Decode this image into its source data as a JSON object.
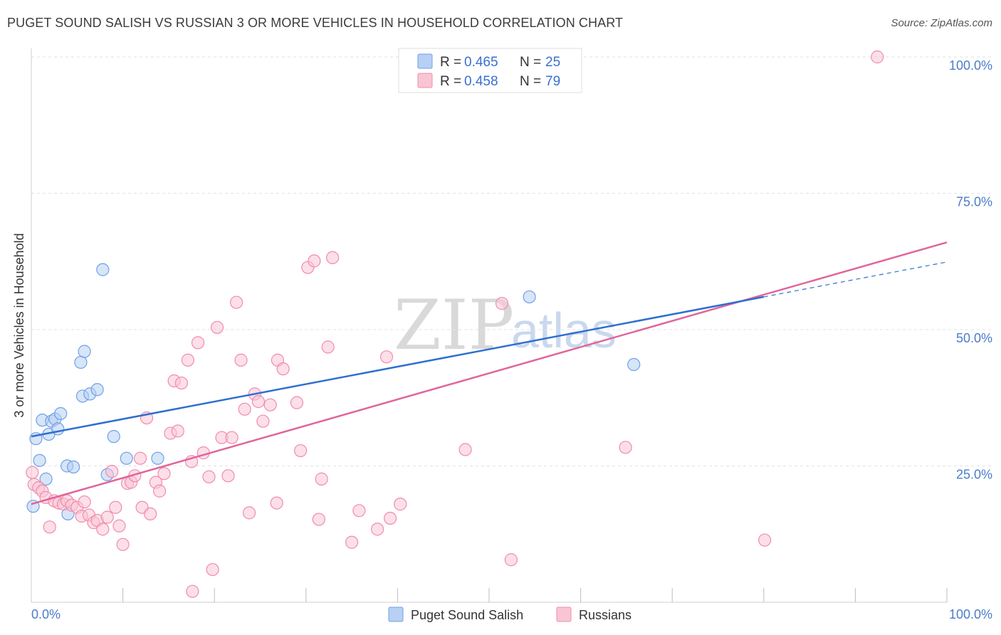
{
  "title": "PUGET SOUND SALISH VS RUSSIAN 3 OR MORE VEHICLES IN HOUSEHOLD CORRELATION CHART",
  "source": "Source: ZipAtlas.com",
  "watermark": {
    "zip": "ZIP",
    "atlas": "atlas"
  },
  "chart_data": {
    "type": "scatter",
    "xlabel": "",
    "ylabel": "3 or more Vehicles in Household",
    "xlim": [
      0,
      100
    ],
    "ylim": [
      0,
      100
    ],
    "x_tick_labels": {
      "left": "0.0%",
      "right": "100.0%"
    },
    "y_ticks": [
      {
        "value": 25,
        "label": "25.0%"
      },
      {
        "value": 50,
        "label": "50.0%"
      },
      {
        "value": 75,
        "label": "75.0%"
      },
      {
        "value": 100,
        "label": "100.0%"
      }
    ],
    "legend_stats": [
      {
        "r_label": "R = ",
        "r": "0.465",
        "n_label": "N = ",
        "n": "25"
      },
      {
        "r_label": "R = ",
        "r": "0.458",
        "n_label": "N = ",
        "n": "79"
      }
    ],
    "series": [
      {
        "name": "Puget Sound Salish",
        "color": "#6fa0e8",
        "fill": "#b7d0f3",
        "line_color": "#2e6fd0",
        "trend": {
          "x0": 0,
          "y0": 30.4,
          "x1": 80,
          "y1": 56.0,
          "dash_x1": 100,
          "dash_y1": 62.4
        },
        "points": [
          [
            0.2,
            17.6
          ],
          [
            0.5,
            30.0
          ],
          [
            0.9,
            26.0
          ],
          [
            1.2,
            33.4
          ],
          [
            1.6,
            22.6
          ],
          [
            1.9,
            30.8
          ],
          [
            2.2,
            33.2
          ],
          [
            2.6,
            33.6
          ],
          [
            2.9,
            31.8
          ],
          [
            3.2,
            34.6
          ],
          [
            3.9,
            25.0
          ],
          [
            4.0,
            16.2
          ],
          [
            4.6,
            24.8
          ],
          [
            5.4,
            44.0
          ],
          [
            5.6,
            37.8
          ],
          [
            5.8,
            46.0
          ],
          [
            6.4,
            38.2
          ],
          [
            7.2,
            39.0
          ],
          [
            7.8,
            61.0
          ],
          [
            8.3,
            23.4
          ],
          [
            9.0,
            30.4
          ],
          [
            10.4,
            26.4
          ],
          [
            13.8,
            26.4
          ],
          [
            54.4,
            56.0
          ],
          [
            65.8,
            43.6
          ]
        ]
      },
      {
        "name": "Russians",
        "color": "#f08cac",
        "fill": "#f9c5d5",
        "line_color": "#e0669a",
        "trend": {
          "x0": 0,
          "y0": 18.0,
          "x1": 100,
          "y1": 66.0
        },
        "points": [
          [
            0.3,
            21.6
          ],
          [
            0.8,
            21.0
          ],
          [
            1.2,
            20.4
          ],
          [
            1.6,
            19.2
          ],
          [
            2.0,
            13.8
          ],
          [
            2.5,
            18.6
          ],
          [
            3.0,
            18.2
          ],
          [
            3.5,
            18.0
          ],
          [
            3.9,
            18.6
          ],
          [
            4.4,
            17.8
          ],
          [
            5.0,
            17.4
          ],
          [
            5.5,
            15.8
          ],
          [
            5.8,
            18.4
          ],
          [
            6.3,
            16.0
          ],
          [
            6.8,
            14.6
          ],
          [
            7.2,
            15.0
          ],
          [
            7.8,
            13.4
          ],
          [
            8.3,
            15.6
          ],
          [
            8.8,
            24.0
          ],
          [
            9.2,
            17.4
          ],
          [
            9.6,
            14.0
          ],
          [
            10.0,
            10.6
          ],
          [
            10.5,
            21.8
          ],
          [
            10.9,
            22.0
          ],
          [
            11.3,
            23.2
          ],
          [
            11.9,
            26.4
          ],
          [
            12.1,
            17.4
          ],
          [
            12.6,
            33.8
          ],
          [
            13.0,
            16.2
          ],
          [
            13.6,
            22.0
          ],
          [
            14.0,
            20.4
          ],
          [
            14.5,
            23.6
          ],
          [
            15.2,
            31.0
          ],
          [
            15.6,
            40.6
          ],
          [
            16.0,
            31.4
          ],
          [
            16.4,
            40.2
          ],
          [
            17.1,
            44.4
          ],
          [
            17.5,
            25.8
          ],
          [
            17.6,
            2.0
          ],
          [
            18.2,
            47.6
          ],
          [
            18.8,
            27.4
          ],
          [
            19.4,
            23.0
          ],
          [
            19.8,
            6.0
          ],
          [
            20.3,
            50.4
          ],
          [
            20.8,
            30.2
          ],
          [
            21.5,
            23.2
          ],
          [
            21.9,
            30.2
          ],
          [
            22.4,
            55.0
          ],
          [
            22.9,
            44.4
          ],
          [
            23.3,
            35.4
          ],
          [
            23.8,
            16.4
          ],
          [
            24.4,
            38.2
          ],
          [
            24.8,
            36.8
          ],
          [
            25.3,
            33.2
          ],
          [
            26.1,
            36.2
          ],
          [
            26.8,
            18.2
          ],
          [
            26.9,
            44.4
          ],
          [
            27.5,
            42.8
          ],
          [
            29.0,
            36.6
          ],
          [
            29.4,
            27.8
          ],
          [
            30.2,
            61.4
          ],
          [
            30.9,
            62.6
          ],
          [
            31.4,
            15.2
          ],
          [
            31.7,
            22.6
          ],
          [
            32.4,
            46.8
          ],
          [
            32.9,
            63.2
          ],
          [
            35.0,
            11.0
          ],
          [
            35.8,
            16.8
          ],
          [
            37.8,
            13.4
          ],
          [
            38.8,
            45.0
          ],
          [
            39.2,
            15.4
          ],
          [
            40.3,
            18.0
          ],
          [
            47.4,
            28.0
          ],
          [
            51.4,
            54.8
          ],
          [
            52.4,
            7.8
          ],
          [
            64.9,
            28.4
          ],
          [
            80.1,
            11.4
          ],
          [
            92.4,
            100.0
          ],
          [
            0.1,
            23.8
          ]
        ]
      }
    ]
  }
}
